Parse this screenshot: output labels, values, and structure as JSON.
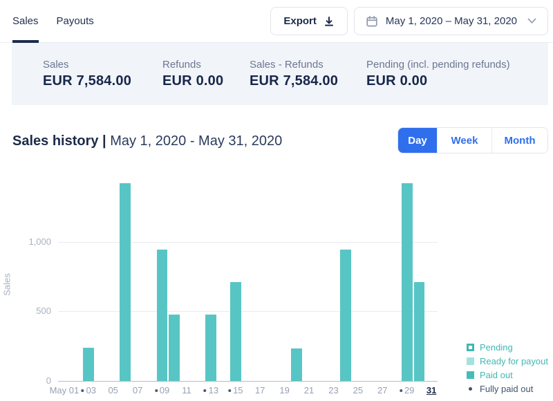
{
  "header": {
    "tabs": [
      {
        "label": "Sales",
        "active": true
      },
      {
        "label": "Payouts",
        "active": false
      }
    ],
    "export_label": "Export",
    "date_range": "May 1, 2020 – May 31, 2020"
  },
  "summary": {
    "items": [
      {
        "label": "Sales",
        "value": "EUR 7,584.00"
      },
      {
        "label": "Refunds",
        "value": "EUR 0.00"
      },
      {
        "label": "Sales - Refunds",
        "value": "EUR 7,584.00"
      },
      {
        "label": "Pending (incl. pending refunds)",
        "value": "EUR 0.00"
      }
    ]
  },
  "section": {
    "title": "Sales history",
    "divider": " | ",
    "subtitle": "May 1, 2020 - May 31, 2020",
    "view_toggle": [
      {
        "label": "Day",
        "active": true
      },
      {
        "label": "Week",
        "active": false
      },
      {
        "label": "Month",
        "active": false
      }
    ]
  },
  "chart_data": {
    "type": "bar",
    "title": "Sales history",
    "subtitle": "May 1, 2020 - May 31, 2020",
    "ylabel": "Sales",
    "xlabel": "",
    "days": 31,
    "ylim": [
      0,
      1460
    ],
    "grid": true,
    "legend_position": "bottom-right",
    "yticks": [
      {
        "value": 0,
        "label": "0"
      },
      {
        "value": 500,
        "label": "500"
      },
      {
        "value": 1000,
        "label": "1,000"
      }
    ],
    "bars": [
      {
        "day": 3,
        "value": 238,
        "status": "paid_out"
      },
      {
        "day": 6,
        "value": 1420,
        "status": "paid_out"
      },
      {
        "day": 9,
        "value": 946,
        "status": "paid_out"
      },
      {
        "day": 10,
        "value": 478,
        "status": "paid_out"
      },
      {
        "day": 13,
        "value": 478,
        "status": "paid_out"
      },
      {
        "day": 15,
        "value": 712,
        "status": "paid_out"
      },
      {
        "day": 20,
        "value": 234,
        "status": "paid_out"
      },
      {
        "day": 24,
        "value": 946,
        "status": "paid_out"
      },
      {
        "day": 29,
        "value": 1420,
        "status": "paid_out"
      },
      {
        "day": 30,
        "value": 712,
        "status": "paid_out"
      }
    ],
    "x_ticks": [
      {
        "day": 1,
        "label": "May 01"
      },
      {
        "day": 3,
        "label": "03",
        "paid_dot": true
      },
      {
        "day": 5,
        "label": "05"
      },
      {
        "day": 7,
        "label": "07"
      },
      {
        "day": 9,
        "label": "09",
        "paid_dot": true
      },
      {
        "day": 11,
        "label": "11"
      },
      {
        "day": 13,
        "label": "13",
        "paid_dot": true
      },
      {
        "day": 15,
        "label": "15",
        "paid_dot": true
      },
      {
        "day": 17,
        "label": "17"
      },
      {
        "day": 19,
        "label": "19"
      },
      {
        "day": 21,
        "label": "21"
      },
      {
        "day": 23,
        "label": "23"
      },
      {
        "day": 25,
        "label": "25"
      },
      {
        "day": 27,
        "label": "27"
      },
      {
        "day": 29,
        "label": "29",
        "paid_dot": true
      },
      {
        "day": 31,
        "label": "31",
        "emphasis": true
      }
    ],
    "legend": [
      {
        "label": "Pending",
        "swatch": "outline"
      },
      {
        "label": "Ready for payout",
        "swatch": "light"
      },
      {
        "label": "Paid out",
        "swatch": "solid"
      },
      {
        "label": "Fully paid out",
        "swatch": "dot"
      }
    ]
  },
  "colors": {
    "accent_blue": "#2f6fed",
    "bar_teal": "#58c5c5",
    "teal_light": "#a5e2df",
    "legend_teal_text": "#3fb8b3",
    "navy": "#1c2b4a",
    "panel_bg": "#f1f4f8",
    "axis_gray": "#a8b0c0"
  }
}
